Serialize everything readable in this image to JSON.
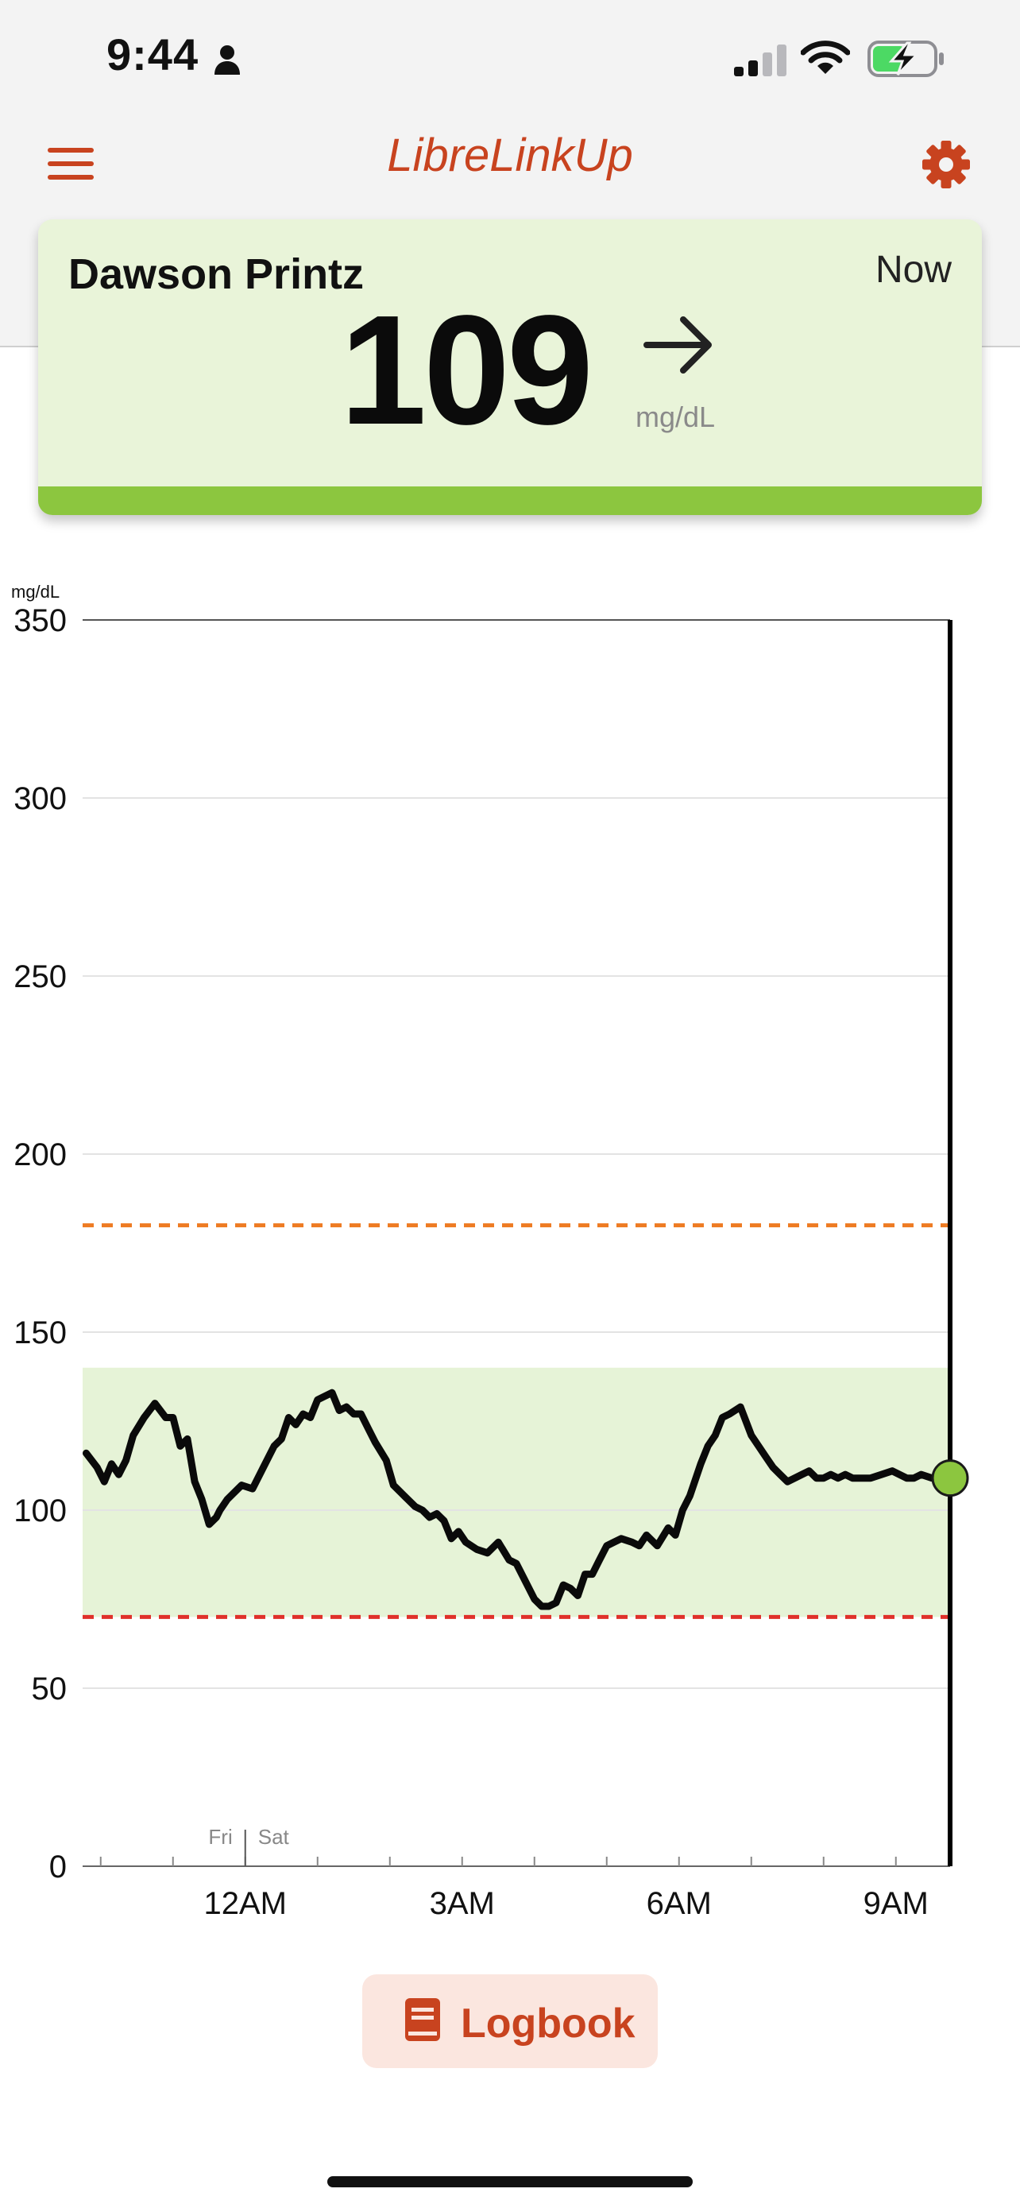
{
  "status_bar": {
    "time": "9:44",
    "icons": [
      "person-icon",
      "signal-icon",
      "wifi-icon",
      "battery-charging-icon"
    ],
    "signal_bars_active": 2,
    "signal_bars_total": 4,
    "battery_level": 0.55,
    "battery_color": "#4cd964"
  },
  "header": {
    "title": "LibreLinkUp",
    "menu_icon": "hamburger-menu-icon",
    "settings_icon": "gear-icon",
    "accent_color": "#c8431f"
  },
  "reading_card": {
    "name": "Dawson Printz",
    "time_label": "Now",
    "value": "109",
    "unit": "mg/dL",
    "trend_icon": "arrow-right-icon",
    "trend": "steady",
    "background_color": "#e9f4d9",
    "status_color": "#8cc63f"
  },
  "chart_data": {
    "type": "line",
    "ylabel": "mg/dL",
    "ylim": [
      0,
      350
    ],
    "yticks": [
      {
        "value": 0,
        "label": "0"
      },
      {
        "value": 50,
        "label": "50"
      },
      {
        "value": 100,
        "label": "100"
      },
      {
        "value": 150,
        "label": "150"
      },
      {
        "value": 200,
        "label": "200"
      },
      {
        "value": 250,
        "label": "250"
      },
      {
        "value": 300,
        "label": "300"
      },
      {
        "value": 350,
        "label": "350"
      }
    ],
    "xlim": [
      -2.25,
      9.75
    ],
    "xticks": [
      {
        "value": 0,
        "label": "12AM"
      },
      {
        "value": 3,
        "label": "3AM"
      },
      {
        "value": 6,
        "label": "6AM"
      },
      {
        "value": 9,
        "label": "9AM"
      }
    ],
    "minor_ticks": [
      -2,
      -1,
      1,
      2,
      4,
      5,
      7,
      8
    ],
    "day_divider": {
      "x": 0,
      "left_label": "Fri",
      "right_label": "Sat"
    },
    "target_range": {
      "low": 70,
      "high": 140,
      "color": "#e6f3d7"
    },
    "high_threshold": {
      "value": 180,
      "color": "#ee7b22"
    },
    "low_threshold": {
      "value": 70,
      "color": "#e0302a"
    },
    "grid": true,
    "series": [
      {
        "line_color": "#0a0a0a",
        "x": [
          -2.2,
          -2.05,
          -1.95,
          -1.85,
          -1.75,
          -1.65,
          -1.55,
          -1.4,
          -1.25,
          -1.1,
          -1.0,
          -0.9,
          -0.8,
          -0.7,
          -0.6,
          -0.5,
          -0.4,
          -0.35,
          -0.25,
          -0.15,
          -0.05,
          0.1,
          0.25,
          0.4,
          0.5,
          0.6,
          0.7,
          0.8,
          0.9,
          1.0,
          1.1,
          1.2,
          1.3,
          1.4,
          1.5,
          1.6,
          1.7,
          1.8,
          1.95,
          2.05,
          2.15,
          2.25,
          2.35,
          2.45,
          2.55,
          2.65,
          2.75,
          2.85,
          2.95,
          3.05,
          3.2,
          3.35,
          3.5,
          3.65,
          3.75,
          3.85,
          4.0,
          4.1,
          4.2,
          4.3,
          4.4,
          4.5,
          4.6,
          4.7,
          4.8,
          4.9,
          5.0,
          5.1,
          5.2,
          5.35,
          5.45,
          5.55,
          5.7,
          5.85,
          5.95,
          6.05,
          6.15,
          6.3,
          6.4,
          6.5,
          6.6,
          6.7,
          6.85,
          7.0,
          7.1,
          7.2,
          7.3,
          7.4,
          7.5,
          7.6,
          7.7,
          7.8,
          7.9,
          8.0,
          8.1,
          8.2,
          8.3,
          8.4,
          8.55,
          8.65,
          8.8,
          8.95,
          9.05,
          9.15,
          9.25,
          9.35,
          9.5,
          9.7
        ],
        "y": [
          116,
          112,
          108,
          113,
          110,
          114,
          121,
          126,
          130,
          126,
          126,
          118,
          120,
          108,
          103,
          96,
          98,
          100,
          103,
          105,
          107,
          106,
          112,
          118,
          120,
          126,
          124,
          127,
          126,
          131,
          132,
          133,
          128,
          129,
          127,
          127,
          123,
          119,
          114,
          107,
          105,
          103,
          101,
          100,
          98,
          99,
          97,
          92,
          94,
          91,
          89,
          88,
          91,
          86,
          85,
          81,
          75,
          73,
          73,
          74,
          79,
          78,
          76,
          82,
          82,
          86,
          90,
          91,
          92,
          91,
          90,
          93,
          90,
          95,
          93,
          100,
          104,
          113,
          118,
          121,
          126,
          127,
          129,
          121,
          118,
          115,
          112,
          110,
          108,
          109,
          110,
          111,
          109,
          109,
          110,
          109,
          110,
          109,
          109,
          109,
          110,
          111,
          110,
          109,
          109,
          110,
          109,
          109
        ]
      }
    ],
    "current_point": {
      "x": 9.75,
      "y": 109,
      "color": "#8cc63f"
    }
  },
  "footer": {
    "logbook_label": "Logbook",
    "logbook_icon": "book-icon"
  }
}
